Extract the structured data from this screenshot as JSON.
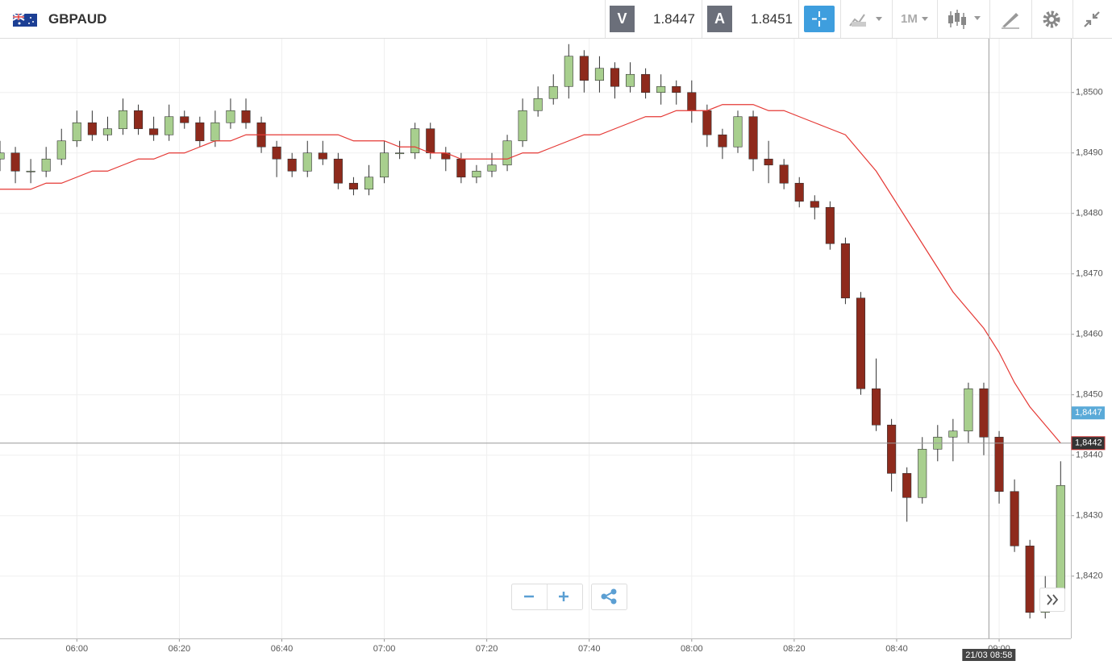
{
  "toolbar": {
    "symbol": "GBPAUD",
    "bid_tag": "V",
    "bid": "1.8447",
    "ask_tag": "A",
    "ask": "1.8451",
    "timeframe": "1M"
  },
  "chart_data": {
    "type": "candlestick",
    "x": [
      "05:45",
      "05:48",
      "05:51",
      "05:54",
      "05:57",
      "06:00",
      "06:03",
      "06:06",
      "06:09",
      "06:12",
      "06:15",
      "06:18",
      "06:21",
      "06:24",
      "06:27",
      "06:30",
      "06:33",
      "06:36",
      "06:39",
      "06:42",
      "06:45",
      "06:48",
      "06:51",
      "06:54",
      "06:57",
      "07:00",
      "07:03",
      "07:06",
      "07:09",
      "07:12",
      "07:15",
      "07:18",
      "07:21",
      "07:24",
      "07:27",
      "07:30",
      "07:33",
      "07:36",
      "07:39",
      "07:42",
      "07:45",
      "07:48",
      "07:51",
      "07:54",
      "07:57",
      "08:00",
      "08:03",
      "08:06",
      "08:09",
      "08:12",
      "08:15",
      "08:18",
      "08:21",
      "08:24",
      "08:27",
      "08:30",
      "08:33",
      "08:36",
      "08:39",
      "08:42",
      "08:45",
      "08:48",
      "08:51",
      "08:54",
      "08:57",
      "09:00",
      "09:03",
      "09:06",
      "09:09",
      "09:12"
    ],
    "open": [
      1.8489,
      1.849,
      1.8487,
      1.8487,
      1.8489,
      1.8492,
      1.8495,
      1.8493,
      1.8494,
      1.8497,
      1.8494,
      1.8493,
      1.8496,
      1.8495,
      1.8492,
      1.8495,
      1.8497,
      1.8495,
      1.8491,
      1.8489,
      1.8487,
      1.849,
      1.8489,
      1.8485,
      1.8484,
      1.8486,
      1.849,
      1.849,
      1.8494,
      1.849,
      1.8489,
      1.8486,
      1.8487,
      1.8488,
      1.8492,
      1.8497,
      1.8499,
      1.8501,
      1.8506,
      1.8502,
      1.8504,
      1.8501,
      1.8503,
      1.85,
      1.8501,
      1.85,
      1.8497,
      1.8493,
      1.8491,
      1.8496,
      1.8489,
      1.8488,
      1.8485,
      1.8482,
      1.8481,
      1.8475,
      1.8466,
      1.8451,
      1.8445,
      1.8437,
      1.8433,
      1.8441,
      1.8443,
      1.8444,
      1.8451,
      1.8443,
      1.8434,
      1.8425,
      1.8414,
      1.8416
    ],
    "high": [
      1.8492,
      1.8491,
      1.8489,
      1.8491,
      1.8494,
      1.8497,
      1.8497,
      1.8496,
      1.8499,
      1.8498,
      1.8496,
      1.8498,
      1.8497,
      1.8496,
      1.8497,
      1.8499,
      1.8499,
      1.8496,
      1.8492,
      1.849,
      1.8492,
      1.8492,
      1.849,
      1.8486,
      1.8488,
      1.8492,
      1.8492,
      1.8495,
      1.8495,
      1.8491,
      1.849,
      1.8488,
      1.849,
      1.8493,
      1.8499,
      1.8501,
      1.8503,
      1.8508,
      1.8507,
      1.8506,
      1.8505,
      1.8505,
      1.8504,
      1.8503,
      1.8502,
      1.8502,
      1.8498,
      1.8494,
      1.8497,
      1.8497,
      1.8492,
      1.8489,
      1.8486,
      1.8483,
      1.8482,
      1.8476,
      1.8467,
      1.8456,
      1.8446,
      1.8438,
      1.8443,
      1.8445,
      1.8446,
      1.8452,
      1.8452,
      1.8444,
      1.8436,
      1.8426,
      1.842,
      1.8439
    ],
    "low": [
      1.8487,
      1.8485,
      1.8485,
      1.8486,
      1.8488,
      1.8491,
      1.8492,
      1.8492,
      1.8493,
      1.8493,
      1.8492,
      1.8492,
      1.8494,
      1.8491,
      1.8491,
      1.8494,
      1.8494,
      1.849,
      1.8486,
      1.8486,
      1.8486,
      1.8488,
      1.8484,
      1.8483,
      1.8483,
      1.8485,
      1.8489,
      1.8489,
      1.8489,
      1.8487,
      1.8485,
      1.8485,
      1.8486,
      1.8487,
      1.8491,
      1.8496,
      1.8498,
      1.8499,
      1.85,
      1.85,
      1.8499,
      1.85,
      1.8499,
      1.8498,
      1.8498,
      1.8495,
      1.8491,
      1.8489,
      1.849,
      1.8487,
      1.8485,
      1.8484,
      1.8481,
      1.8479,
      1.8474,
      1.8465,
      1.845,
      1.8444,
      1.8434,
      1.8429,
      1.8432,
      1.8439,
      1.8439,
      1.8442,
      1.844,
      1.8432,
      1.8424,
      1.8413,
      1.8413,
      1.8415
    ],
    "close": [
      1.849,
      1.8487,
      1.8487,
      1.8489,
      1.8492,
      1.8495,
      1.8493,
      1.8494,
      1.8497,
      1.8494,
      1.8493,
      1.8496,
      1.8495,
      1.8492,
      1.8495,
      1.8497,
      1.8495,
      1.8491,
      1.8489,
      1.8487,
      1.849,
      1.8489,
      1.8485,
      1.8484,
      1.8486,
      1.849,
      1.849,
      1.8494,
      1.849,
      1.8489,
      1.8486,
      1.8487,
      1.8488,
      1.8492,
      1.8497,
      1.8499,
      1.8501,
      1.8506,
      1.8502,
      1.8504,
      1.8501,
      1.8503,
      1.85,
      1.8501,
      1.85,
      1.8497,
      1.8493,
      1.8491,
      1.8496,
      1.8489,
      1.8488,
      1.8485,
      1.8482,
      1.8481,
      1.8475,
      1.8466,
      1.8451,
      1.8445,
      1.8437,
      1.8433,
      1.8441,
      1.8443,
      1.8444,
      1.8451,
      1.8443,
      1.8434,
      1.8425,
      1.8414,
      1.8416,
      1.8435
    ],
    "up_color": "#a8cf8e",
    "down_color": "#8e2a1c",
    "moving_average": {
      "color": "#e53935",
      "values": [
        1.8484,
        1.8484,
        1.8484,
        1.8485,
        1.8485,
        1.8486,
        1.8487,
        1.8487,
        1.8488,
        1.8489,
        1.8489,
        1.849,
        1.849,
        1.8491,
        1.8492,
        1.8492,
        1.8493,
        1.8493,
        1.8493,
        1.8493,
        1.8493,
        1.8493,
        1.8493,
        1.8492,
        1.8492,
        1.8492,
        1.8491,
        1.8491,
        1.849,
        1.849,
        1.8489,
        1.8489,
        1.8489,
        1.8489,
        1.849,
        1.849,
        1.8491,
        1.8492,
        1.8493,
        1.8493,
        1.8494,
        1.8495,
        1.8496,
        1.8496,
        1.8497,
        1.8497,
        1.8497,
        1.8498,
        1.8498,
        1.8498,
        1.8497,
        1.8497,
        1.8496,
        1.8495,
        1.8494,
        1.8493,
        1.849,
        1.8487,
        1.8483,
        1.8479,
        1.8475,
        1.8471,
        1.8467,
        1.8464,
        1.8461,
        1.8457,
        1.8452,
        1.8448,
        1.8445,
        1.8442
      ]
    },
    "xlim": [
      "05:45",
      "09:14"
    ],
    "xticks": [
      "06:00",
      "06:20",
      "06:40",
      "07:00",
      "07:20",
      "07:40",
      "08:00",
      "08:20",
      "08:40",
      "09:00"
    ],
    "ylim": [
      1.84097,
      1.85089
    ],
    "yticks": [
      {
        "value": 1.842,
        "label": "1,8420"
      },
      {
        "value": 1.843,
        "label": "1,8430"
      },
      {
        "value": 1.844,
        "label": "1,8440"
      },
      {
        "value": 1.845,
        "label": "1,8450"
      },
      {
        "value": 1.846,
        "label": "1,8460"
      },
      {
        "value": 1.847,
        "label": "1,8470"
      },
      {
        "value": 1.848,
        "label": "1,8480"
      },
      {
        "value": 1.849,
        "label": "1,8490"
      },
      {
        "value": 1.85,
        "label": "1,8500"
      }
    ],
    "grid": true,
    "bid_marker": {
      "value": 1.8447,
      "label": "1,8447",
      "color": "#5aaad8"
    },
    "crosshair": {
      "value": 1.8442,
      "label": "1,8442",
      "time": "08:58",
      "time_label": "21/03 08:58"
    }
  }
}
